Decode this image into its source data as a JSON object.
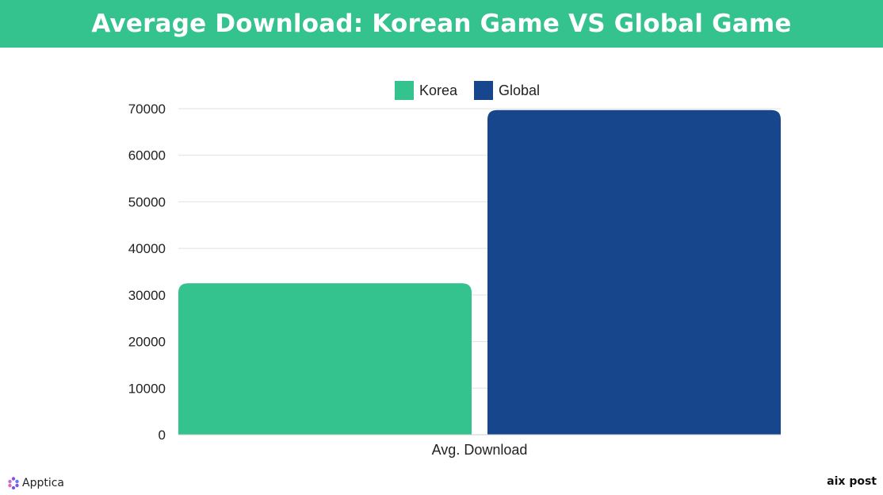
{
  "header": {
    "title": "Average Download: Korean Game VS Global Game",
    "background": "#34c28f"
  },
  "chart_data": {
    "type": "bar",
    "categories": [
      "Avg. Download"
    ],
    "series": [
      {
        "name": "Korea",
        "values": [
          32500
        ],
        "color": "#34c28f"
      },
      {
        "name": "Global",
        "values": [
          69700
        ],
        "color": "#17468c"
      }
    ],
    "title": "",
    "xlabel": "",
    "ylabel": "",
    "ylim": [
      0,
      70000
    ],
    "yticks": [
      "0",
      "10000",
      "20000",
      "30000",
      "40000",
      "50000",
      "60000",
      "70000"
    ],
    "grid": true,
    "legend_position": "top-center"
  },
  "footer": {
    "left_logo_text": "Apptica",
    "right_logo_text": "aix post",
    "left_logo_icon": "apptica-hexagon-icon",
    "left_logo_color": "#8a4fe8"
  }
}
